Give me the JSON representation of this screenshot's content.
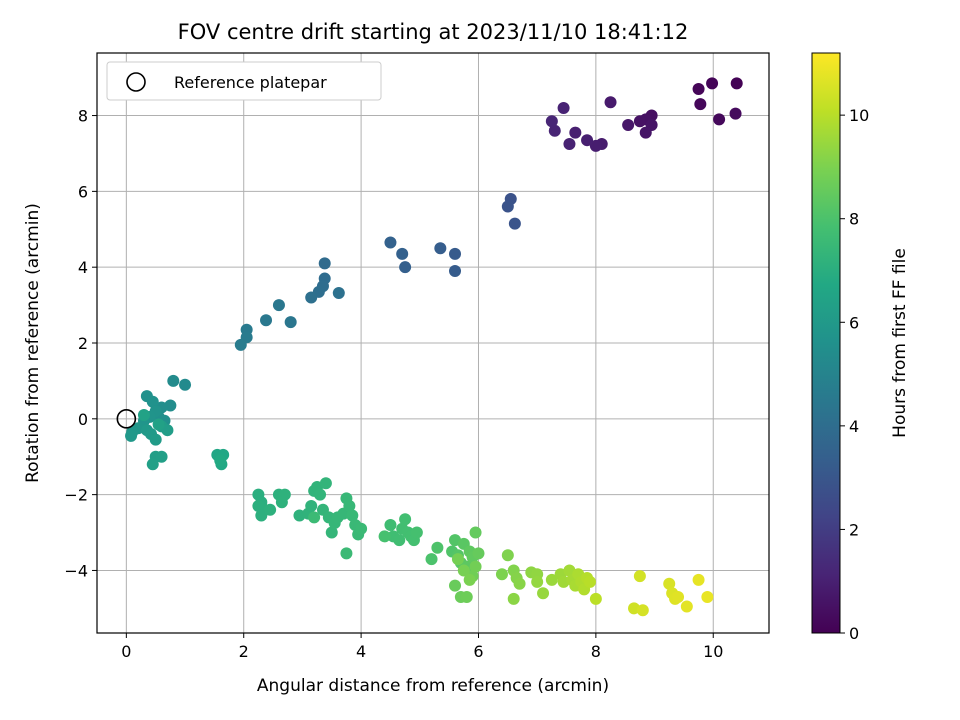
{
  "chart_data": {
    "type": "scatter",
    "title": "FOV centre drift starting at 2023/11/10 18:41:12",
    "xlabel": "Angular distance from reference (arcmin)",
    "ylabel": "Rotation from reference (arcmin)",
    "xlim": [
      -0.5,
      10.95
    ],
    "ylim": [
      -5.65,
      9.65
    ],
    "xticks": [
      0,
      2,
      4,
      6,
      8,
      10
    ],
    "yticks": [
      -4,
      -2,
      0,
      2,
      4,
      6,
      8
    ],
    "grid": true,
    "colormap": "viridis",
    "colorbar": {
      "label": "Hours from first FF file",
      "range": [
        0,
        11.2
      ],
      "ticks": [
        0,
        2,
        4,
        6,
        8,
        10
      ]
    },
    "legend": {
      "placement": "top-left",
      "entries": [
        "Reference platepar"
      ]
    },
    "reference_point": {
      "x": 0,
      "y": 0
    },
    "points": [
      [
        10.4,
        8.85,
        0.05
      ],
      [
        9.98,
        8.85,
        0.1
      ],
      [
        9.75,
        8.7,
        0.15
      ],
      [
        9.78,
        8.3,
        0.2
      ],
      [
        10.1,
        7.9,
        0.25
      ],
      [
        10.38,
        8.05,
        0.3
      ],
      [
        8.95,
        8.0,
        0.45
      ],
      [
        8.85,
        7.9,
        0.5
      ],
      [
        8.75,
        7.85,
        0.55
      ],
      [
        8.95,
        7.75,
        0.6
      ],
      [
        8.85,
        7.55,
        0.65
      ],
      [
        8.55,
        7.75,
        0.7
      ],
      [
        8.25,
        8.35,
        0.8
      ],
      [
        8.1,
        7.25,
        0.85
      ],
      [
        8.0,
        7.2,
        0.9
      ],
      [
        7.85,
        7.35,
        0.95
      ],
      [
        7.65,
        7.55,
        1.0
      ],
      [
        7.55,
        7.25,
        1.05
      ],
      [
        7.45,
        8.2,
        1.1
      ],
      [
        7.3,
        7.6,
        1.15
      ],
      [
        7.25,
        7.85,
        1.2
      ],
      [
        6.55,
        5.8,
        2.8
      ],
      [
        6.5,
        5.6,
        2.85
      ],
      [
        6.62,
        5.15,
        2.9
      ],
      [
        5.6,
        4.35,
        3.2
      ],
      [
        5.6,
        3.9,
        3.25
      ],
      [
        5.35,
        4.5,
        3.3
      ],
      [
        4.75,
        4.0,
        3.4
      ],
      [
        4.7,
        4.35,
        3.45
      ],
      [
        4.5,
        4.65,
        3.5
      ],
      [
        3.38,
        4.1,
        3.9
      ],
      [
        3.38,
        3.7,
        3.95
      ],
      [
        3.35,
        3.5,
        4.0
      ],
      [
        3.28,
        3.35,
        4.05
      ],
      [
        3.15,
        3.2,
        4.1
      ],
      [
        3.62,
        3.32,
        4.15
      ],
      [
        2.8,
        2.55,
        4.4
      ],
      [
        2.6,
        3.0,
        4.45
      ],
      [
        2.38,
        2.6,
        4.5
      ],
      [
        2.05,
        2.35,
        4.55
      ],
      [
        2.05,
        2.15,
        4.6
      ],
      [
        1.95,
        1.95,
        4.65
      ],
      [
        1.0,
        0.9,
        5.3
      ],
      [
        0.8,
        1.0,
        5.35
      ],
      [
        0.75,
        0.35,
        5.4
      ],
      [
        0.6,
        0.3,
        5.45
      ],
      [
        0.55,
        0.05,
        5.5
      ],
      [
        0.65,
        -0.05,
        5.55
      ],
      [
        0.35,
        0.6,
        5.6
      ],
      [
        0.45,
        0.45,
        5.65
      ],
      [
        0.5,
        0.2,
        5.7
      ],
      [
        0.4,
        0.05,
        5.75
      ],
      [
        0.3,
        -0.05,
        5.8
      ],
      [
        0.2,
        -0.25,
        5.85
      ],
      [
        0.1,
        -0.35,
        5.9
      ],
      [
        0.08,
        -0.45,
        5.95
      ],
      [
        0.35,
        -0.3,
        6.0
      ],
      [
        0.42,
        -0.4,
        6.05
      ],
      [
        0.5,
        -0.55,
        6.1
      ],
      [
        0.6,
        -0.2,
        6.15
      ],
      [
        0.7,
        -0.3,
        6.2
      ],
      [
        0.5,
        -1.0,
        6.25
      ],
      [
        0.6,
        -1.0,
        6.3
      ],
      [
        0.45,
        -1.2,
        6.35
      ],
      [
        0.55,
        -0.15,
        6.4
      ],
      [
        0.3,
        0.1,
        6.45
      ],
      [
        1.55,
        -0.95,
        6.6
      ],
      [
        1.65,
        -0.95,
        6.65
      ],
      [
        1.62,
        -1.2,
        6.7
      ],
      [
        1.6,
        -1.1,
        6.75
      ],
      [
        2.25,
        -2.0,
        7.0
      ],
      [
        2.3,
        -2.2,
        7.02
      ],
      [
        2.25,
        -2.3,
        7.04
      ],
      [
        2.35,
        -2.4,
        7.06
      ],
      [
        2.3,
        -2.55,
        7.08
      ],
      [
        2.45,
        -2.4,
        7.1
      ],
      [
        2.6,
        -2.0,
        7.12
      ],
      [
        2.7,
        -2.0,
        7.14
      ],
      [
        2.65,
        -2.2,
        7.16
      ],
      [
        2.95,
        -2.55,
        7.18
      ],
      [
        3.1,
        -2.5,
        7.2
      ],
      [
        3.15,
        -2.3,
        7.22
      ],
      [
        3.2,
        -1.9,
        7.24
      ],
      [
        3.25,
        -1.8,
        7.26
      ],
      [
        3.3,
        -2.0,
        7.28
      ],
      [
        3.4,
        -1.7,
        7.3
      ],
      [
        3.35,
        -2.4,
        7.32
      ],
      [
        3.45,
        -2.6,
        7.34
      ],
      [
        3.5,
        -3.0,
        7.36
      ],
      [
        3.55,
        -2.75,
        7.38
      ],
      [
        3.6,
        -2.6,
        7.4
      ],
      [
        3.7,
        -2.5,
        7.42
      ],
      [
        3.75,
        -2.1,
        7.44
      ],
      [
        3.8,
        -2.3,
        7.46
      ],
      [
        3.85,
        -2.55,
        7.48
      ],
      [
        3.9,
        -2.8,
        7.5
      ],
      [
        3.95,
        -3.05,
        7.52
      ],
      [
        4.0,
        -2.9,
        7.54
      ],
      [
        3.75,
        -3.55,
        7.56
      ],
      [
        3.2,
        -2.6,
        7.58
      ],
      [
        4.5,
        -2.8,
        7.7
      ],
      [
        4.55,
        -3.1,
        7.72
      ],
      [
        4.65,
        -3.2,
        7.74
      ],
      [
        4.7,
        -2.9,
        7.76
      ],
      [
        4.75,
        -2.65,
        7.78
      ],
      [
        4.8,
        -3.0,
        7.8
      ],
      [
        4.85,
        -3.1,
        7.82
      ],
      [
        4.9,
        -3.2,
        7.84
      ],
      [
        4.95,
        -3.0,
        7.86
      ],
      [
        4.4,
        -3.1,
        7.88
      ],
      [
        5.2,
        -3.7,
        8.0
      ],
      [
        5.3,
        -3.4,
        8.05
      ],
      [
        5.55,
        -3.5,
        8.1
      ],
      [
        5.6,
        -3.2,
        8.15
      ],
      [
        5.65,
        -3.6,
        8.2
      ],
      [
        5.7,
        -3.8,
        8.25
      ],
      [
        5.75,
        -3.3,
        8.3
      ],
      [
        5.8,
        -3.9,
        8.35
      ],
      [
        5.85,
        -3.5,
        8.4
      ],
      [
        5.9,
        -3.65,
        8.45
      ],
      [
        5.95,
        -3.0,
        8.5
      ],
      [
        6.0,
        -3.55,
        8.55
      ],
      [
        5.6,
        -4.4,
        8.6
      ],
      [
        5.7,
        -4.7,
        8.65
      ],
      [
        5.8,
        -4.7,
        8.7
      ],
      [
        5.9,
        -4.15,
        8.75
      ],
      [
        5.95,
        -3.9,
        8.8
      ],
      [
        5.65,
        -3.7,
        8.85
      ],
      [
        5.75,
        -4.0,
        8.9
      ],
      [
        5.85,
        -4.25,
        8.95
      ],
      [
        6.4,
        -4.1,
        9.0
      ],
      [
        6.5,
        -3.6,
        9.05
      ],
      [
        6.6,
        -4.0,
        9.1
      ],
      [
        6.65,
        -4.2,
        9.15
      ],
      [
        6.7,
        -4.35,
        9.2
      ],
      [
        6.6,
        -4.75,
        9.25
      ],
      [
        6.9,
        -4.05,
        9.3
      ],
      [
        7.0,
        -4.1,
        9.35
      ],
      [
        7.0,
        -4.3,
        9.4
      ],
      [
        7.1,
        -4.6,
        9.45
      ],
      [
        7.25,
        -4.25,
        9.5
      ],
      [
        7.4,
        -4.1,
        9.55
      ],
      [
        7.45,
        -4.3,
        9.6
      ],
      [
        7.55,
        -4.0,
        9.65
      ],
      [
        7.6,
        -4.25,
        9.7
      ],
      [
        7.65,
        -4.4,
        9.75
      ],
      [
        7.7,
        -4.1,
        9.8
      ],
      [
        7.75,
        -4.3,
        9.85
      ],
      [
        7.8,
        -4.5,
        9.9
      ],
      [
        7.85,
        -4.2,
        9.95
      ],
      [
        7.9,
        -4.3,
        10.0
      ],
      [
        8.0,
        -4.75,
        10.05
      ],
      [
        8.65,
        -5.0,
        10.4
      ],
      [
        8.75,
        -4.15,
        10.45
      ],
      [
        8.8,
        -5.05,
        10.5
      ],
      [
        9.25,
        -4.35,
        10.55
      ],
      [
        9.3,
        -4.6,
        10.6
      ],
      [
        9.35,
        -4.75,
        10.65
      ],
      [
        9.4,
        -4.7,
        10.7
      ],
      [
        9.55,
        -4.95,
        10.75
      ],
      [
        9.75,
        -4.25,
        10.8
      ],
      [
        9.9,
        -4.7,
        10.85
      ]
    ]
  }
}
